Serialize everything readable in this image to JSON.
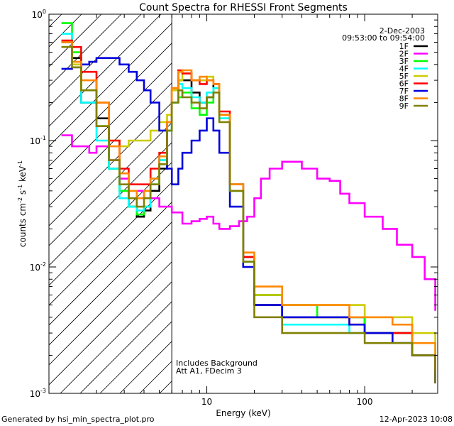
{
  "chart_data": {
    "type": "line",
    "title": "Count Spectra for RHESSI Front Segments",
    "xlabel": "Energy (keV)",
    "ylabel": "counts cm^-2 s^-1 keV^-1",
    "x_scale": "log",
    "y_scale": "log",
    "xlim": [
      1.0,
      290
    ],
    "ylim": [
      0.001,
      1.0
    ],
    "x_ticks": [
      {
        "v": 10,
        "label": "10"
      },
      {
        "v": 100,
        "label": "100"
      }
    ],
    "y_ticks": [
      {
        "v": 1,
        "mant": "10",
        "exp": "0"
      },
      {
        "v": 0.1,
        "mant": "10",
        "exp": "-1"
      },
      {
        "v": 0.01,
        "mant": "10",
        "exp": "-2"
      },
      {
        "v": 0.001,
        "mant": "10",
        "exp": "-3"
      }
    ],
    "date": "2-Dec-2003",
    "time_range": "09:53:00 to 09:54:00",
    "annotations": [
      "Includes Background",
      "Att A1, FDecim 3"
    ],
    "attenuator_cut_keV": 6,
    "legend_position": "top-right",
    "series": [
      {
        "name": "1F",
        "color": "#000000",
        "x": [
          1.2,
          1.4,
          1.6,
          2.0,
          2.4,
          2.8,
          3.2,
          3.6,
          4.0,
          4.4,
          5.0,
          5.6,
          6.0,
          6.6,
          7.0,
          8.0,
          9.0,
          10.0,
          11.0,
          12.0,
          14.0,
          17.0,
          20.0,
          30.0,
          50.0,
          80.0,
          100.0,
          150.0,
          200.0,
          280.0
        ],
        "y": [
          0.6,
          0.45,
          0.2,
          0.15,
          0.06,
          0.04,
          0.03,
          0.025,
          0.028,
          0.04,
          0.06,
          0.12,
          0.25,
          0.3,
          0.3,
          0.24,
          0.2,
          0.22,
          0.28,
          0.16,
          0.045,
          0.012,
          0.006,
          0.004,
          0.004,
          0.004,
          0.003,
          0.003,
          0.002,
          0.0012
        ]
      },
      {
        "name": "2F",
        "color": "#ff00ff",
        "x": [
          1.2,
          1.4,
          1.6,
          1.8,
          2.0,
          2.4,
          2.8,
          3.2,
          4.0,
          5.0,
          6.0,
          7.0,
          8.0,
          9.0,
          10.0,
          11.0,
          12.0,
          14.0,
          16.0,
          18.0,
          20.0,
          22.0,
          25.0,
          30.0,
          40.0,
          50.0,
          60.0,
          70.0,
          80.0,
          100.0,
          130.0,
          160.0,
          200.0,
          240.0,
          280.0
        ],
        "y": [
          0.11,
          0.09,
          0.09,
          0.08,
          0.09,
          0.07,
          0.05,
          0.04,
          0.035,
          0.03,
          0.027,
          0.022,
          0.023,
          0.024,
          0.025,
          0.022,
          0.02,
          0.021,
          0.023,
          0.025,
          0.035,
          0.05,
          0.06,
          0.068,
          0.06,
          0.05,
          0.048,
          0.038,
          0.032,
          0.025,
          0.02,
          0.015,
          0.012,
          0.008,
          0.0045
        ]
      },
      {
        "name": "3F",
        "color": "#00ff00",
        "x": [
          1.2,
          1.4,
          1.6,
          2.0,
          2.4,
          2.8,
          3.2,
          3.6,
          4.0,
          4.4,
          5.0,
          5.6,
          6.0,
          6.6,
          7.0,
          8.0,
          9.0,
          10.0,
          11.0,
          12.0,
          14.0,
          17.0,
          20.0,
          30.0,
          50.0,
          80.0,
          100.0,
          150.0,
          200.0,
          280.0
        ],
        "y": [
          0.85,
          0.5,
          0.25,
          0.13,
          0.06,
          0.04,
          0.03,
          0.026,
          0.03,
          0.045,
          0.07,
          0.12,
          0.2,
          0.22,
          0.24,
          0.18,
          0.16,
          0.2,
          0.26,
          0.15,
          0.04,
          0.012,
          0.006,
          0.005,
          0.004,
          0.004,
          0.003,
          0.003,
          0.002,
          0.0015
        ]
      },
      {
        "name": "4F",
        "color": "#00ffff",
        "x": [
          1.2,
          1.4,
          1.6,
          2.0,
          2.4,
          2.8,
          3.2,
          3.6,
          4.0,
          4.4,
          5.0,
          5.6,
          6.0,
          6.6,
          7.0,
          8.0,
          9.0,
          10.0,
          11.0,
          12.0,
          14.0,
          17.0,
          20.0,
          30.0,
          50.0,
          80.0,
          100.0,
          150.0,
          200.0,
          280.0
        ],
        "y": [
          0.7,
          0.4,
          0.2,
          0.1,
          0.06,
          0.035,
          0.03,
          0.028,
          0.03,
          0.05,
          0.07,
          0.12,
          0.2,
          0.28,
          0.26,
          0.22,
          0.2,
          0.24,
          0.26,
          0.15,
          0.04,
          0.011,
          0.005,
          0.0035,
          0.0035,
          0.003,
          0.003,
          0.0025,
          0.002,
          0.0012
        ]
      },
      {
        "name": "5F",
        "color": "#cccc00",
        "x": [
          1.2,
          1.4,
          1.6,
          2.0,
          2.4,
          2.8,
          3.2,
          3.6,
          4.0,
          4.4,
          5.0,
          5.6,
          6.0,
          6.6,
          7.0,
          8.0,
          9.0,
          10.0,
          11.0,
          12.0,
          14.0,
          17.0,
          20.0,
          30.0,
          50.0,
          80.0,
          100.0,
          150.0,
          200.0,
          280.0
        ],
        "y": [
          0.55,
          0.4,
          0.25,
          0.13,
          0.1,
          0.09,
          0.1,
          0.1,
          0.1,
          0.12,
          0.14,
          0.16,
          0.25,
          0.3,
          0.34,
          0.3,
          0.3,
          0.32,
          0.28,
          0.16,
          0.045,
          0.012,
          0.006,
          0.005,
          0.005,
          0.005,
          0.004,
          0.004,
          0.003,
          0.002
        ]
      },
      {
        "name": "6F",
        "color": "#ff0000",
        "x": [
          1.2,
          1.4,
          1.6,
          2.0,
          2.4,
          2.8,
          3.2,
          3.6,
          4.0,
          4.4,
          5.0,
          5.6,
          6.0,
          6.6,
          7.0,
          8.0,
          9.0,
          10.0,
          11.0,
          12.0,
          14.0,
          17.0,
          20.0,
          30.0,
          50.0,
          80.0,
          100.0,
          150.0,
          200.0,
          280.0
        ],
        "y": [
          0.62,
          0.55,
          0.35,
          0.2,
          0.1,
          0.06,
          0.045,
          0.045,
          0.045,
          0.06,
          0.08,
          0.14,
          0.26,
          0.36,
          0.34,
          0.3,
          0.28,
          0.3,
          0.28,
          0.17,
          0.045,
          0.012,
          0.005,
          0.004,
          0.004,
          0.0035,
          0.003,
          0.003,
          0.002,
          0.0012
        ]
      },
      {
        "name": "7F",
        "color": "#0000dd",
        "x": [
          1.2,
          1.4,
          1.6,
          1.8,
          2.0,
          2.4,
          2.8,
          3.2,
          3.6,
          4.0,
          4.4,
          5.0,
          5.6,
          6.0,
          6.6,
          7.0,
          8.0,
          9.0,
          10.0,
          11.0,
          12.0,
          14.0,
          17.0,
          20.0,
          30.0,
          50.0,
          80.0,
          100.0,
          150.0,
          200.0,
          280.0
        ],
        "y": [
          0.37,
          0.38,
          0.4,
          0.42,
          0.45,
          0.45,
          0.4,
          0.35,
          0.3,
          0.25,
          0.2,
          0.12,
          0.06,
          0.045,
          0.06,
          0.08,
          0.1,
          0.12,
          0.15,
          0.12,
          0.08,
          0.03,
          0.01,
          0.005,
          0.004,
          0.004,
          0.0035,
          0.003,
          0.0025,
          0.002,
          0.0012
        ]
      },
      {
        "name": "8F",
        "color": "#ff8800",
        "x": [
          1.2,
          1.4,
          1.6,
          2.0,
          2.4,
          2.8,
          3.2,
          3.6,
          4.0,
          4.4,
          5.0,
          5.6,
          6.0,
          6.6,
          7.0,
          8.0,
          9.0,
          10.0,
          11.0,
          12.0,
          14.0,
          17.0,
          20.0,
          30.0,
          50.0,
          80.0,
          100.0,
          150.0,
          200.0,
          280.0
        ],
        "y": [
          0.6,
          0.42,
          0.3,
          0.2,
          0.09,
          0.055,
          0.04,
          0.035,
          0.04,
          0.05,
          0.075,
          0.14,
          0.26,
          0.35,
          0.36,
          0.3,
          0.32,
          0.3,
          0.28,
          0.16,
          0.045,
          0.013,
          0.007,
          0.005,
          0.005,
          0.004,
          0.004,
          0.0035,
          0.0025,
          0.0015
        ]
      },
      {
        "name": "9F",
        "color": "#808000",
        "x": [
          1.2,
          1.4,
          1.6,
          2.0,
          2.4,
          2.8,
          3.2,
          3.6,
          4.0,
          4.4,
          5.0,
          5.6,
          6.0,
          6.6,
          7.0,
          8.0,
          9.0,
          10.0,
          11.0,
          12.0,
          14.0,
          17.0,
          20.0,
          30.0,
          50.0,
          80.0,
          100.0,
          150.0,
          200.0,
          280.0
        ],
        "y": [
          0.55,
          0.38,
          0.25,
          0.13,
          0.07,
          0.045,
          0.035,
          0.03,
          0.035,
          0.045,
          0.065,
          0.12,
          0.2,
          0.25,
          0.22,
          0.2,
          0.18,
          0.22,
          0.24,
          0.14,
          0.04,
          0.011,
          0.004,
          0.003,
          0.003,
          0.003,
          0.0025,
          0.0025,
          0.002,
          0.0012
        ]
      }
    ]
  },
  "footer": {
    "left": "Generated by hsi_min_spectra_plot.pro",
    "right": "12-Apr-2023 10:08"
  }
}
